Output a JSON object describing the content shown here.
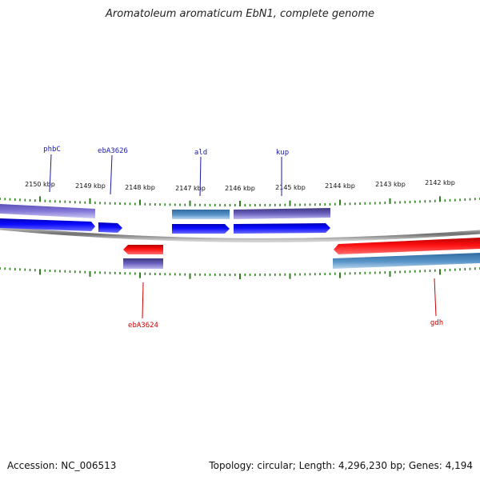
{
  "title": "Aromatoleum aromaticum EbN1, complete genome",
  "footer": {
    "accession": "Accession: NC_006513",
    "summary": "Topology: circular; Length: 4,296,230 bp; Genes: 4,194"
  },
  "axis": {
    "ticks": [
      "2150 kbp",
      "2149 kbp",
      "2148 kbp",
      "2147 kbp",
      "2146 kbp",
      "2145 kbp",
      "2144 kbp",
      "2143 kbp",
      "2142 kbp"
    ]
  },
  "genes_top": [
    {
      "name": "phbC",
      "color": "#1a1aa8"
    },
    {
      "name": "ebA3626",
      "color": "#1a1aa8"
    },
    {
      "name": "ald",
      "color": "#1a1aa8"
    },
    {
      "name": "kup",
      "color": "#1a1aa8"
    }
  ],
  "genes_bottom": [
    {
      "name": "ebA3624",
      "color": "#cc0000"
    },
    {
      "name": "gdh",
      "color": "#cc0000"
    }
  ],
  "colors": {
    "forward_cds": "#0000ee",
    "reverse_cds": "#ee0000",
    "tick": "#2e7d1e",
    "backbone": "#8a8a8a"
  }
}
